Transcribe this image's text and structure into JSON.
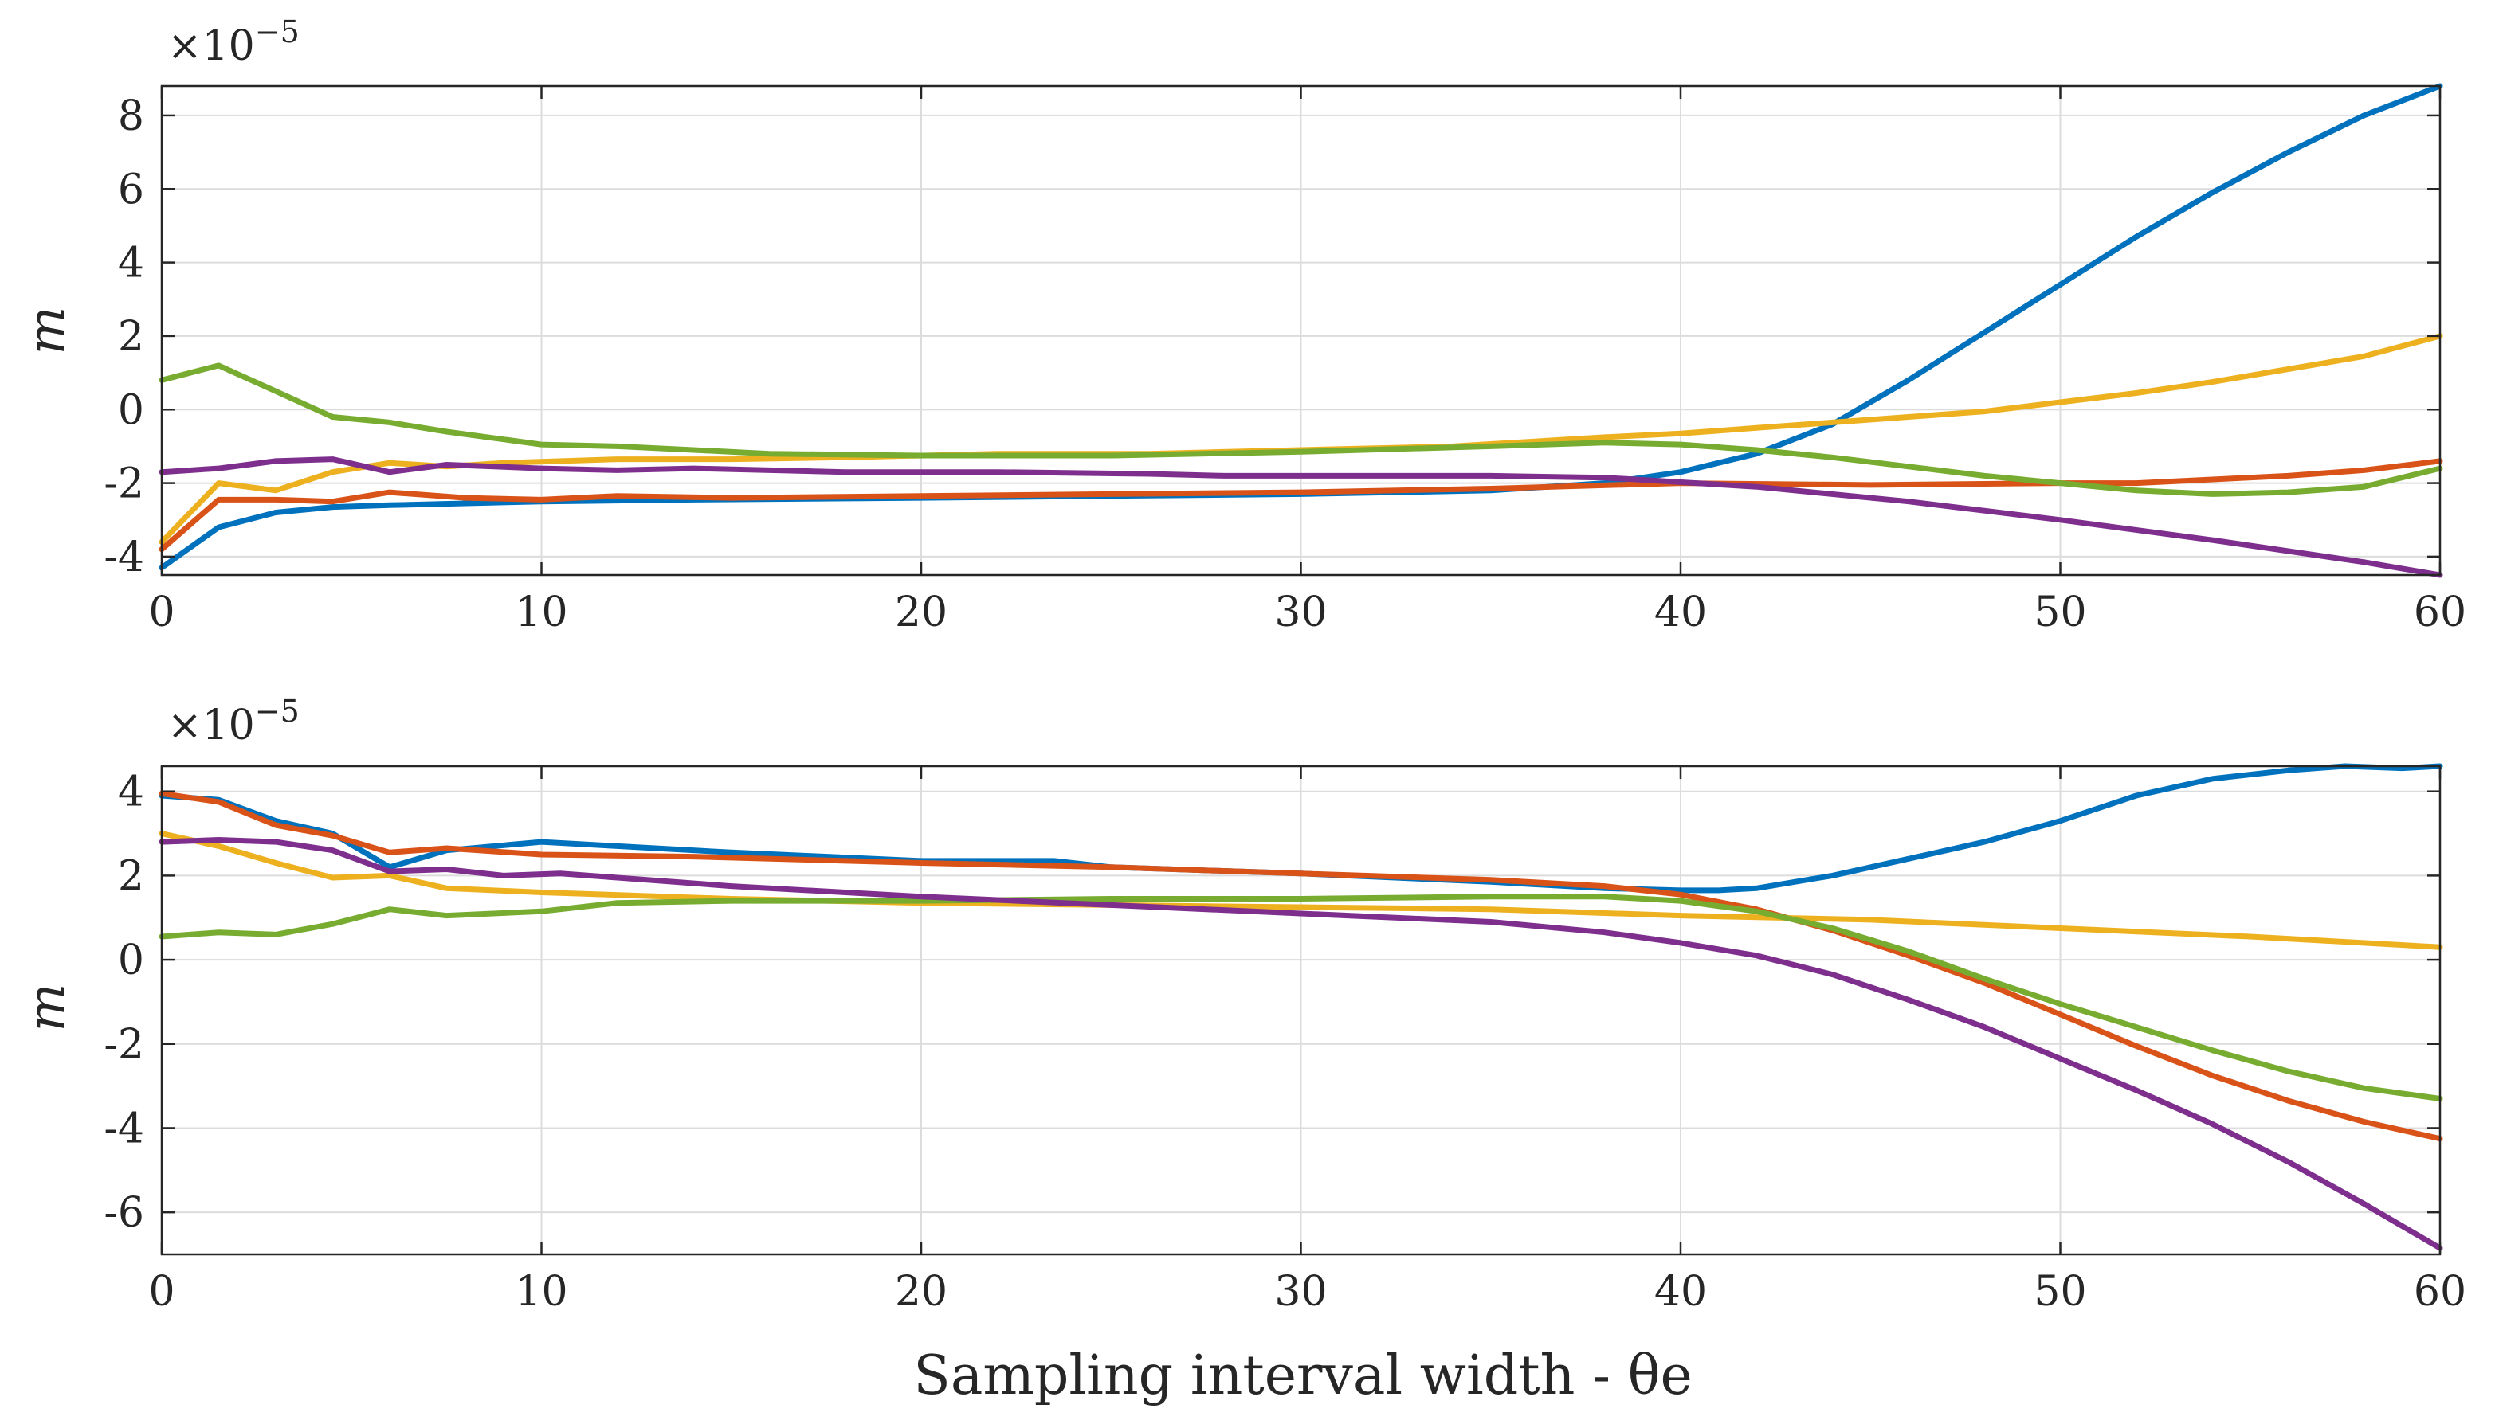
{
  "chart_data": [
    {
      "type": "line",
      "title": "",
      "xlabel": "",
      "ylabel": "m",
      "exponent_label": "×10",
      "exponent_power": "−5",
      "xlim": [
        0,
        60
      ],
      "ylim": [
        -4.5,
        8.8
      ],
      "xticks": [
        0,
        10,
        20,
        30,
        40,
        50,
        60
      ],
      "xtick_labels": [
        "0",
        "10",
        "20",
        "30",
        "40",
        "50",
        "60"
      ],
      "yticks": [
        -4,
        -2,
        0,
        2,
        4,
        6,
        8
      ],
      "ytick_labels": [
        "-4",
        "-2",
        "0",
        "2",
        "4",
        "6",
        "8"
      ],
      "grid": true,
      "series": [
        {
          "name": "blue",
          "color": "#0072BD",
          "x": [
            0,
            1.5,
            3,
            4.5,
            6,
            8,
            10,
            14,
            20,
            25,
            30,
            35,
            38,
            40,
            42,
            44,
            46,
            48,
            50,
            52,
            54,
            56,
            58,
            60
          ],
          "y": [
            -4.3,
            -3.2,
            -2.8,
            -2.65,
            -2.6,
            -2.55,
            -2.5,
            -2.45,
            -2.4,
            -2.35,
            -2.3,
            -2.2,
            -2.0,
            -1.7,
            -1.2,
            -0.4,
            0.8,
            2.1,
            3.4,
            4.7,
            5.9,
            7.0,
            8.0,
            8.8
          ]
        },
        {
          "name": "red",
          "color": "#D95319",
          "x": [
            0,
            1.5,
            3,
            4.5,
            6,
            8,
            10,
            12,
            15,
            20,
            25,
            30,
            35,
            40,
            45,
            50,
            52,
            54,
            56,
            58,
            60
          ],
          "y": [
            -3.8,
            -2.45,
            -2.45,
            -2.5,
            -2.25,
            -2.4,
            -2.45,
            -2.35,
            -2.4,
            -2.35,
            -2.3,
            -2.25,
            -2.15,
            -2.0,
            -2.05,
            -2.0,
            -2.0,
            -1.9,
            -1.8,
            -1.65,
            -1.4
          ]
        },
        {
          "name": "yellow",
          "color": "#EDB120",
          "x": [
            0,
            1.5,
            3,
            4.5,
            6,
            7.5,
            9,
            12,
            15,
            18,
            22,
            26,
            30,
            34,
            38,
            40,
            42,
            44,
            46,
            48,
            50,
            52,
            54,
            56,
            58,
            60
          ],
          "y": [
            -3.6,
            -2.0,
            -2.2,
            -1.7,
            -1.45,
            -1.55,
            -1.45,
            -1.35,
            -1.35,
            -1.3,
            -1.2,
            -1.2,
            -1.1,
            -1.0,
            -0.75,
            -0.65,
            -0.5,
            -0.35,
            -0.2,
            -0.05,
            0.2,
            0.45,
            0.75,
            1.1,
            1.45,
            2.0
          ]
        },
        {
          "name": "green",
          "color": "#77AC30",
          "x": [
            0,
            1.5,
            3,
            4.5,
            6,
            7.5,
            10,
            12,
            14,
            16,
            20,
            25,
            30,
            35,
            38,
            40,
            42,
            44,
            46,
            48,
            50,
            52,
            54,
            56,
            58,
            60
          ],
          "y": [
            0.8,
            1.2,
            0.5,
            -0.2,
            -0.35,
            -0.6,
            -0.95,
            -1.0,
            -1.1,
            -1.2,
            -1.25,
            -1.25,
            -1.15,
            -1.0,
            -0.9,
            -0.95,
            -1.1,
            -1.3,
            -1.55,
            -1.8,
            -2.0,
            -2.2,
            -2.3,
            -2.25,
            -2.1,
            -1.6
          ]
        },
        {
          "name": "purple",
          "color": "#7E2F8E",
          "x": [
            0,
            1.5,
            3,
            4.5,
            6,
            7.5,
            10,
            12,
            14,
            18,
            22,
            26,
            28,
            30,
            35,
            38,
            42,
            46,
            50,
            54,
            58,
            60
          ],
          "y": [
            -1.7,
            -1.6,
            -1.4,
            -1.35,
            -1.7,
            -1.5,
            -1.6,
            -1.65,
            -1.6,
            -1.7,
            -1.7,
            -1.75,
            -1.8,
            -1.8,
            -1.8,
            -1.85,
            -2.1,
            -2.5,
            -3.0,
            -3.55,
            -4.15,
            -4.5
          ]
        }
      ]
    },
    {
      "type": "line",
      "title": "",
      "xlabel": "Sampling interval width - θe",
      "ylabel": "m",
      "exponent_label": "×10",
      "exponent_power": "−5",
      "xlim": [
        0,
        60
      ],
      "ylim": [
        -7,
        4.6
      ],
      "xticks": [
        0,
        10,
        20,
        30,
        40,
        50,
        60
      ],
      "xtick_labels": [
        "0",
        "10",
        "20",
        "30",
        "40",
        "50",
        "60"
      ],
      "yticks": [
        -6,
        -4,
        -2,
        0,
        2,
        4
      ],
      "ytick_labels": [
        "-6",
        "-4",
        "-2",
        "0",
        "2",
        "4"
      ],
      "grid": true,
      "series": [
        {
          "name": "blue",
          "color": "#0072BD",
          "x": [
            0,
            1.5,
            3,
            4.5,
            6,
            7.5,
            10,
            12,
            15,
            20,
            23.5,
            25,
            30,
            35,
            38,
            40,
            41,
            42,
            44,
            46,
            48,
            50,
            52,
            54,
            56,
            57.5,
            59,
            60
          ],
          "y": [
            3.9,
            3.8,
            3.3,
            3.0,
            2.2,
            2.6,
            2.8,
            2.7,
            2.55,
            2.35,
            2.35,
            2.2,
            2.05,
            1.85,
            1.7,
            1.65,
            1.65,
            1.7,
            2.0,
            2.4,
            2.8,
            3.3,
            3.9,
            4.3,
            4.5,
            4.6,
            4.55,
            4.6
          ]
        },
        {
          "name": "red",
          "color": "#D95319",
          "x": [
            0,
            1.5,
            3,
            4.5,
            6,
            7.5,
            10,
            14,
            20,
            25,
            30,
            35,
            38,
            40,
            42,
            44,
            46,
            48,
            50,
            52,
            54,
            56,
            58,
            60
          ],
          "y": [
            3.95,
            3.75,
            3.2,
            2.95,
            2.55,
            2.65,
            2.5,
            2.45,
            2.3,
            2.2,
            2.05,
            1.9,
            1.75,
            1.55,
            1.2,
            0.7,
            0.1,
            -0.55,
            -1.3,
            -2.05,
            -2.75,
            -3.35,
            -3.85,
            -4.25
          ]
        },
        {
          "name": "yellow",
          "color": "#EDB120",
          "x": [
            0,
            1.5,
            3,
            4.5,
            6,
            7.5,
            10,
            15,
            20,
            25,
            30,
            35,
            40,
            45,
            50,
            55,
            60
          ],
          "y": [
            3.0,
            2.7,
            2.3,
            1.95,
            2.0,
            1.7,
            1.6,
            1.45,
            1.35,
            1.3,
            1.25,
            1.2,
            1.05,
            0.95,
            0.75,
            0.55,
            0.3
          ]
        },
        {
          "name": "green",
          "color": "#77AC30",
          "x": [
            0,
            1.5,
            3,
            4.5,
            6,
            7.5,
            10,
            12,
            15,
            20,
            25,
            30,
            35,
            38,
            40,
            42,
            44,
            46,
            48,
            50,
            52,
            54,
            56,
            58,
            60
          ],
          "y": [
            0.55,
            0.65,
            0.6,
            0.85,
            1.2,
            1.05,
            1.15,
            1.35,
            1.4,
            1.4,
            1.45,
            1.45,
            1.5,
            1.5,
            1.4,
            1.15,
            0.75,
            0.2,
            -0.45,
            -1.05,
            -1.6,
            -2.15,
            -2.65,
            -3.05,
            -3.3
          ]
        },
        {
          "name": "purple",
          "color": "#7E2F8E",
          "x": [
            0,
            1.5,
            3,
            4.5,
            6,
            7.5,
            9,
            10.5,
            12,
            15,
            20,
            25,
            30,
            35,
            38,
            40,
            42,
            44,
            46,
            48,
            50,
            52,
            54,
            56,
            58,
            60
          ],
          "y": [
            2.8,
            2.85,
            2.8,
            2.6,
            2.1,
            2.15,
            2.0,
            2.05,
            1.95,
            1.75,
            1.5,
            1.3,
            1.1,
            0.9,
            0.65,
            0.4,
            0.1,
            -0.35,
            -0.95,
            -1.6,
            -2.35,
            -3.1,
            -3.9,
            -4.8,
            -5.8,
            -6.85
          ]
        }
      ]
    }
  ]
}
